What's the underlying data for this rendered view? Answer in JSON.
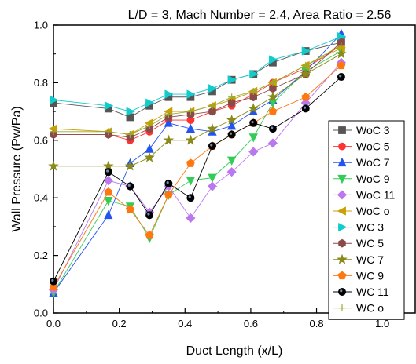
{
  "chart_data": {
    "type": "line",
    "title": "L/D = 3, Mach Number = 2.4, Area Ratio = 2.56",
    "xlabel": "Duct Length (x/L)",
    "ylabel": "Wall Pressure (Pw/Pa)",
    "xlim": [
      0.0,
      1.1
    ],
    "ylim": [
      0.0,
      1.0
    ],
    "xticks": [
      "0.0",
      "0.2",
      "0.4",
      "0.6",
      "0.8",
      "1.0"
    ],
    "yticks": [
      "0.0",
      "0.2",
      "0.4",
      "0.6",
      "0.8",
      "1.0"
    ],
    "grid": false,
    "legend_position": "right",
    "series": [
      {
        "name": "WoC 3",
        "color": "#555555",
        "marker": "square",
        "x": [
          0.0,
          0.167,
          0.233,
          0.292,
          0.35,
          0.417,
          0.483,
          0.542,
          0.608,
          0.667,
          0.767,
          0.875
        ],
        "y": [
          0.73,
          0.71,
          0.68,
          0.72,
          0.75,
          0.75,
          0.77,
          0.81,
          0.83,
          0.87,
          0.91,
          0.94
        ]
      },
      {
        "name": "WoC 5",
        "color": "#ff3333",
        "marker": "circle",
        "x": [
          0.0,
          0.167,
          0.233,
          0.292,
          0.35,
          0.417,
          0.483,
          0.542,
          0.608,
          0.667,
          0.767,
          0.875
        ],
        "y": [
          0.62,
          0.62,
          0.6,
          0.63,
          0.67,
          0.67,
          0.7,
          0.72,
          0.76,
          0.8,
          0.85,
          0.93
        ]
      },
      {
        "name": "WoC 7",
        "color": "#2255ee",
        "marker": "triangle-up",
        "x": [
          0.0,
          0.167,
          0.233,
          0.292,
          0.35,
          0.417,
          0.483,
          0.542,
          0.608,
          0.667,
          0.767,
          0.875
        ],
        "y": [
          0.07,
          0.34,
          0.52,
          0.57,
          0.66,
          0.64,
          0.63,
          0.65,
          0.7,
          0.74,
          0.84,
          0.97
        ]
      },
      {
        "name": "WoC 9",
        "color": "#33cc55",
        "marker": "triangle-down",
        "x": [
          0.0,
          0.167,
          0.233,
          0.292,
          0.35,
          0.417,
          0.483,
          0.542,
          0.608,
          0.667,
          0.767,
          0.875
        ],
        "y": [
          0.07,
          0.39,
          0.37,
          0.26,
          0.41,
          0.46,
          0.47,
          0.53,
          0.61,
          0.73,
          0.84,
          0.91
        ]
      },
      {
        "name": "WoC 11",
        "color": "#bb77ee",
        "marker": "diamond",
        "x": [
          0.0,
          0.167,
          0.233,
          0.292,
          0.35,
          0.417,
          0.483,
          0.542,
          0.608,
          0.667,
          0.767,
          0.875
        ],
        "y": [
          0.08,
          0.46,
          0.44,
          0.35,
          0.44,
          0.33,
          0.44,
          0.49,
          0.56,
          0.59,
          0.73,
          0.87
        ]
      },
      {
        "name": "WoC o",
        "color": "#c8a000",
        "marker": "triangle-left",
        "x": [
          0.0,
          0.167,
          0.233,
          0.292,
          0.35,
          0.417,
          0.483,
          0.542,
          0.608,
          0.667,
          0.767,
          0.875
        ],
        "y": [
          0.64,
          0.63,
          0.62,
          0.66,
          0.7,
          0.7,
          0.72,
          0.74,
          0.77,
          0.8,
          0.86,
          0.92
        ]
      },
      {
        "name": "WC 3",
        "color": "#11cccc",
        "marker": "triangle-right",
        "x": [
          0.0,
          0.167,
          0.233,
          0.292,
          0.35,
          0.417,
          0.483,
          0.542,
          0.608,
          0.667,
          0.767,
          0.875
        ],
        "y": [
          0.74,
          0.72,
          0.7,
          0.73,
          0.76,
          0.76,
          0.78,
          0.81,
          0.83,
          0.88,
          0.91,
          0.96
        ]
      },
      {
        "name": "WC 5",
        "color": "#8b4a4a",
        "marker": "hexagon",
        "x": [
          0.0,
          0.167,
          0.233,
          0.292,
          0.35,
          0.417,
          0.483,
          0.542,
          0.608,
          0.667,
          0.767,
          0.875
        ],
        "y": [
          0.62,
          0.62,
          0.61,
          0.64,
          0.68,
          0.69,
          0.7,
          0.73,
          0.75,
          0.78,
          0.83,
          0.94
        ]
      },
      {
        "name": "WC 7",
        "color": "#8a8a1a",
        "marker": "star",
        "x": [
          0.0,
          0.167,
          0.233,
          0.292,
          0.35,
          0.417,
          0.483,
          0.542,
          0.608,
          0.667,
          0.767,
          0.875
        ],
        "y": [
          0.51,
          0.51,
          0.51,
          0.54,
          0.6,
          0.6,
          0.64,
          0.67,
          0.71,
          0.75,
          0.83,
          0.9
        ]
      },
      {
        "name": "WC 9",
        "color": "#ff7711",
        "marker": "pentagon",
        "x": [
          0.0,
          0.167,
          0.233,
          0.292,
          0.35,
          0.417,
          0.483,
          0.542,
          0.608,
          0.667,
          0.767,
          0.875
        ],
        "y": [
          0.09,
          0.42,
          0.36,
          0.27,
          0.41,
          0.52,
          0.58,
          0.62,
          0.66,
          0.7,
          0.75,
          0.86
        ]
      },
      {
        "name": "WC 11",
        "color": "#000000",
        "marker": "dot",
        "x": [
          0.0,
          0.167,
          0.233,
          0.292,
          0.35,
          0.417,
          0.483,
          0.542,
          0.608,
          0.667,
          0.767,
          0.875
        ],
        "y": [
          0.11,
          0.49,
          0.44,
          0.34,
          0.45,
          0.4,
          0.58,
          0.62,
          0.66,
          0.64,
          0.71,
          0.82
        ]
      },
      {
        "name": "WC o",
        "color": "#99aa33",
        "marker": "plus",
        "x": [
          0.0,
          0.167,
          0.233,
          0.292,
          0.35,
          0.417,
          0.483,
          0.542,
          0.608,
          0.667,
          0.767,
          0.875
        ],
        "y": [
          0.63,
          0.63,
          0.62,
          0.65,
          0.69,
          0.7,
          0.72,
          0.75,
          0.77,
          0.8,
          0.86,
          0.93
        ]
      }
    ]
  }
}
